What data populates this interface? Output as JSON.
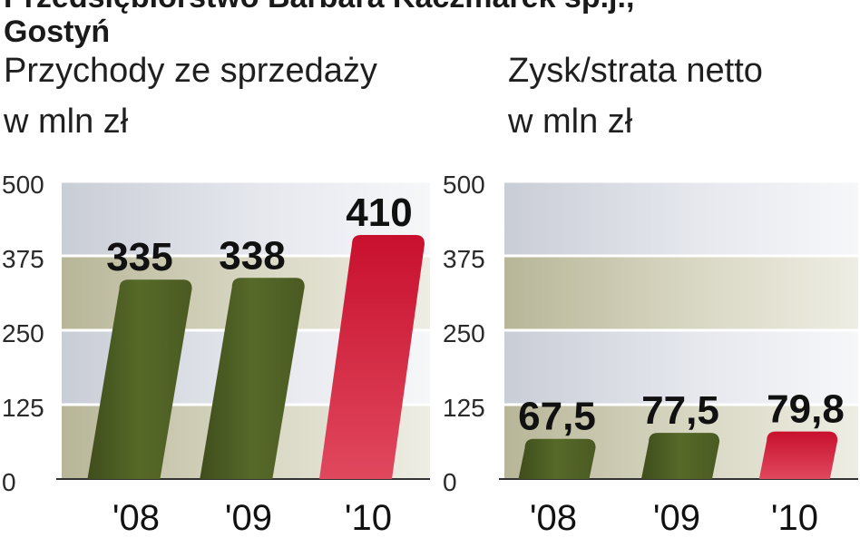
{
  "header": {
    "company_line1": "Przedsiębiorstwo Barbara Kaczmarek sp.j.,",
    "company_line2": "Gostyń"
  },
  "chart_data": [
    {
      "type": "bar",
      "title_line1": "Przychody ze sprzedaży",
      "title_line2": "w mln zł",
      "categories": [
        "'08",
        "'09",
        "'10"
      ],
      "values": [
        335,
        338,
        410
      ],
      "value_labels": [
        "335",
        "338",
        "410"
      ],
      "ylim": [
        0,
        500
      ],
      "yticks": [
        0,
        125,
        250,
        375,
        500
      ],
      "ytick_labels": [
        "0",
        "125",
        "250",
        "375",
        "500"
      ],
      "bar_colors": [
        "#4f6025",
        "#4f6025",
        "#cf1f3e"
      ],
      "grid": true
    },
    {
      "type": "bar",
      "title_line1": "Zysk/strata netto",
      "title_line2": "w mln zł",
      "categories": [
        "'08",
        "'09",
        "'10"
      ],
      "values": [
        67.5,
        77.5,
        79.8
      ],
      "value_labels": [
        "67,5",
        "77,5",
        "79,8"
      ],
      "ylim": [
        0,
        500
      ],
      "yticks": [
        0,
        125,
        250,
        375,
        500
      ],
      "ytick_labels": [
        "0",
        "125",
        "250",
        "375",
        "500"
      ],
      "bar_colors": [
        "#4f6025",
        "#4f6025",
        "#cf1f3e"
      ],
      "grid": true
    }
  ]
}
